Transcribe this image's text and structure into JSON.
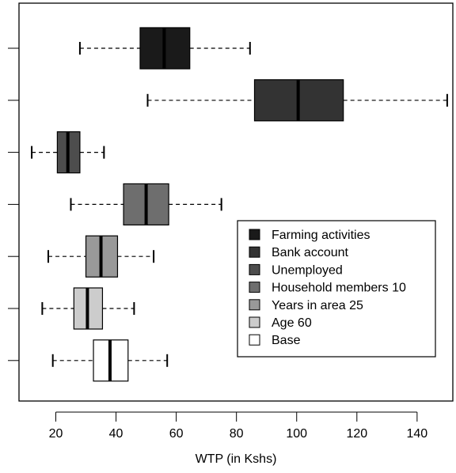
{
  "chart_data": {
    "type": "boxplot",
    "orientation": "horizontal",
    "title": "",
    "xlabel": "WTP (in Kshs)",
    "ylabel": "",
    "xlim": [
      10,
      150
    ],
    "xticks": [
      20,
      40,
      60,
      80,
      100,
      120,
      140
    ],
    "grid": false,
    "legend": {
      "position": "lower-right"
    },
    "series": [
      {
        "name": "Farming activities",
        "color": "#1a1a1a",
        "whisker_low": 28,
        "q1": 48,
        "median": 56,
        "q3": 64.5,
        "whisker_high": 84.5
      },
      {
        "name": "Bank account",
        "color": "#333333",
        "whisker_low": 50.5,
        "q1": 86,
        "median": 100.5,
        "q3": 115.5,
        "whisker_high": 150
      },
      {
        "name": "Unemployed",
        "color": "#4d4d4d",
        "whisker_low": 12,
        "q1": 20.5,
        "median": 24,
        "q3": 28,
        "whisker_high": 36
      },
      {
        "name": "Household members 10",
        "color": "#6e6e6e",
        "whisker_low": 25,
        "q1": 42.5,
        "median": 50,
        "q3": 57.5,
        "whisker_high": 75
      },
      {
        "name": "Years in area 25",
        "color": "#999999",
        "whisker_low": 17.5,
        "q1": 30,
        "median": 35,
        "q3": 40.5,
        "whisker_high": 52.5
      },
      {
        "name": "Age 60",
        "color": "#cccccc",
        "whisker_low": 15.5,
        "q1": 26,
        "median": 30.5,
        "q3": 35.5,
        "whisker_high": 46
      },
      {
        "name": "Base",
        "color": "#ffffff",
        "whisker_low": 19,
        "q1": 32.5,
        "median": 38,
        "q3": 44,
        "whisker_high": 57
      }
    ]
  }
}
